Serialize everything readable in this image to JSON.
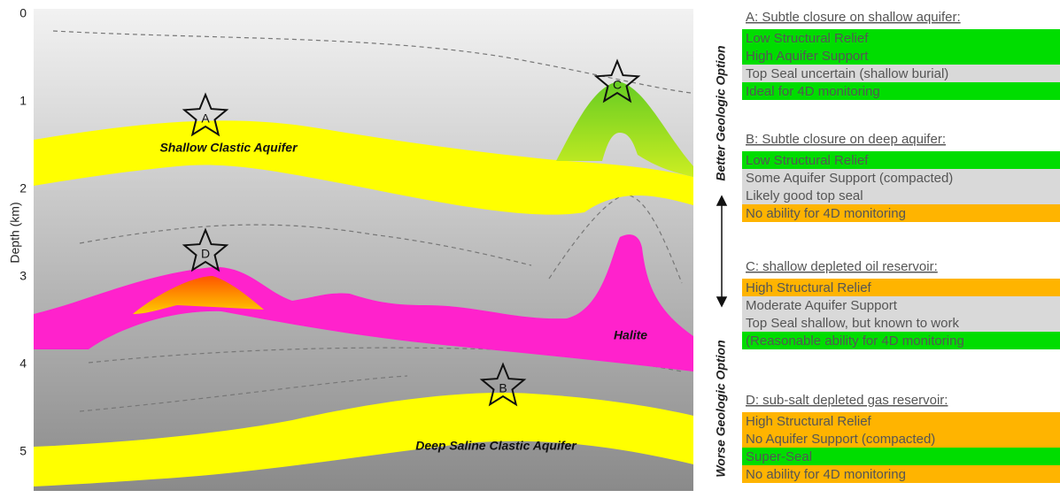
{
  "axis": {
    "label": "Depth (km)",
    "ticks": [
      "0",
      "1",
      "2",
      "3",
      "4",
      "5"
    ]
  },
  "stars": [
    "A",
    "C",
    "D",
    "B"
  ],
  "layer_labels": [
    "Shallow Clastic Aquifer",
    "Halite",
    "Deep Saline Clastic Aquifer"
  ],
  "scale": {
    "top": "Better Geologic Option",
    "bottom": "Worse Geologic Option"
  },
  "options": [
    {
      "title": "A: Subtle closure on shallow aquifer:",
      "rows": [
        {
          "text": "Low Structural Relief",
          "color": "#00dd00"
        },
        {
          "text": "High Aquifer Support",
          "color": "#00dd00"
        },
        {
          "text": "Top Seal uncertain (shallow burial)",
          "color": "#d9d9d9"
        },
        {
          "text": "Ideal for 4D monitoring",
          "color": "#00dd00"
        }
      ]
    },
    {
      "title": "B: Subtle closure on deep aquifer:",
      "rows": [
        {
          "text": "Low Structural Relief",
          "color": "#00dd00"
        },
        {
          "text": "Some Aquifer Support (compacted)",
          "color": "#d9d9d9"
        },
        {
          "text": "Likely good top seal",
          "color": "#d9d9d9"
        },
        {
          "text": "No ability for 4D monitoring",
          "color": "#ffb400"
        }
      ]
    },
    {
      "title": "C: shallow depleted oil reservoir:",
      "rows": [
        {
          "text": "High Structural Relief",
          "color": "#ffb400"
        },
        {
          "text": "Moderate Aquifer Support",
          "color": "#d9d9d9"
        },
        {
          "text": "Top Seal shallow, but known to work",
          "color": "#d9d9d9"
        },
        {
          "text": "(Reasonable ability for 4D monitoring",
          "color": "#00dd00"
        }
      ]
    },
    {
      "title": "D: sub-salt depleted gas reservoir:",
      "rows": [
        {
          "text": "High Structural Relief",
          "color": "#ffb400"
        },
        {
          "text": "No Aquifer Support (compacted)",
          "color": "#ffb400"
        },
        {
          "text": "Super-Seal",
          "color": "#00dd00"
        },
        {
          "text": "No ability for 4D monitoring",
          "color": "#ffb400"
        }
      ]
    }
  ]
}
